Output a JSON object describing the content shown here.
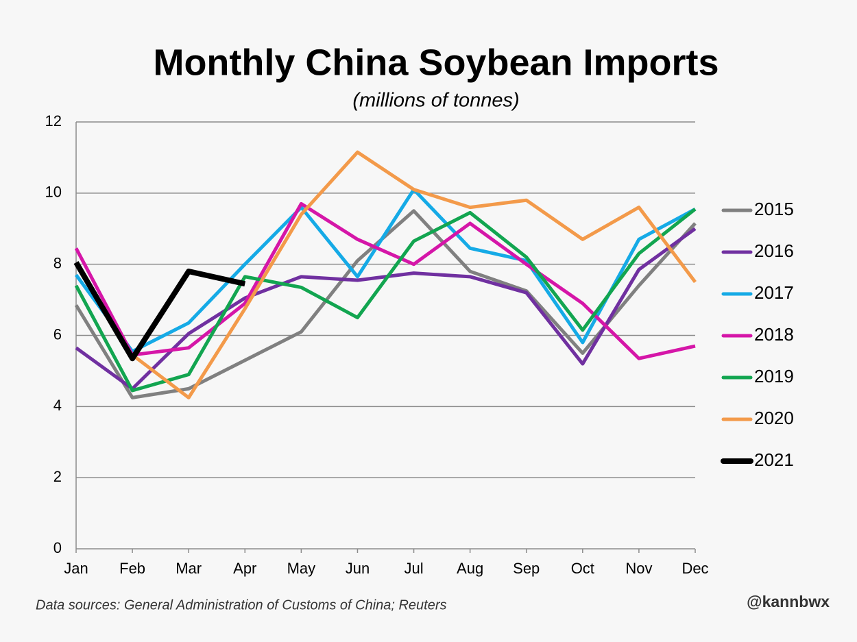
{
  "chart_data": {
    "type": "line",
    "title": "Monthly China Soybean Imports",
    "subtitle": "(millions of tonnes)",
    "source": "Data sources: General Administration of Customs of China; Reuters",
    "credit": "@kannbwx",
    "categories": [
      "Jan",
      "Feb",
      "Mar",
      "Apr",
      "May",
      "Jun",
      "Jul",
      "Aug",
      "Sep",
      "Oct",
      "Nov",
      "Dec"
    ],
    "ylim": [
      0,
      12
    ],
    "yticks": [
      0,
      2,
      4,
      6,
      8,
      10,
      12
    ],
    "grid": true,
    "legend": "right",
    "series": [
      {
        "name": "2015",
        "color": "#808080",
        "values": [
          6.85,
          4.25,
          4.5,
          5.3,
          6.1,
          8.1,
          9.5,
          7.8,
          7.25,
          5.5,
          7.4,
          9.15
        ]
      },
      {
        "name": "2016",
        "color": "#7030a0",
        "values": [
          5.65,
          4.5,
          6.05,
          7.05,
          7.65,
          7.55,
          7.75,
          7.65,
          7.2,
          5.2,
          7.85,
          9.0
        ]
      },
      {
        "name": "2017",
        "color": "#15aae6",
        "values": [
          7.7,
          5.55,
          6.35,
          8.0,
          9.6,
          7.65,
          10.1,
          8.45,
          8.1,
          5.8,
          8.7,
          9.55
        ]
      },
      {
        "name": "2018",
        "color": "#d516a8",
        "values": [
          8.45,
          5.45,
          5.65,
          6.9,
          9.7,
          8.7,
          8.0,
          9.15,
          8.0,
          6.9,
          5.35,
          5.7
        ]
      },
      {
        "name": "2019",
        "color": "#12a550",
        "values": [
          7.4,
          4.45,
          4.9,
          7.65,
          7.35,
          6.5,
          8.65,
          9.45,
          8.2,
          6.15,
          8.3,
          9.55
        ]
      },
      {
        "name": "2020",
        "color": "#f39a4a",
        "values": [
          null,
          5.45,
          4.25,
          6.75,
          9.4,
          11.15,
          10.1,
          9.6,
          9.8,
          8.7,
          9.6,
          7.5
        ]
      },
      {
        "name": "2021",
        "color": "#000000",
        "values": [
          8.05,
          5.35,
          7.8,
          7.45,
          null,
          null,
          null,
          null,
          null,
          null,
          null,
          null
        ]
      }
    ]
  }
}
